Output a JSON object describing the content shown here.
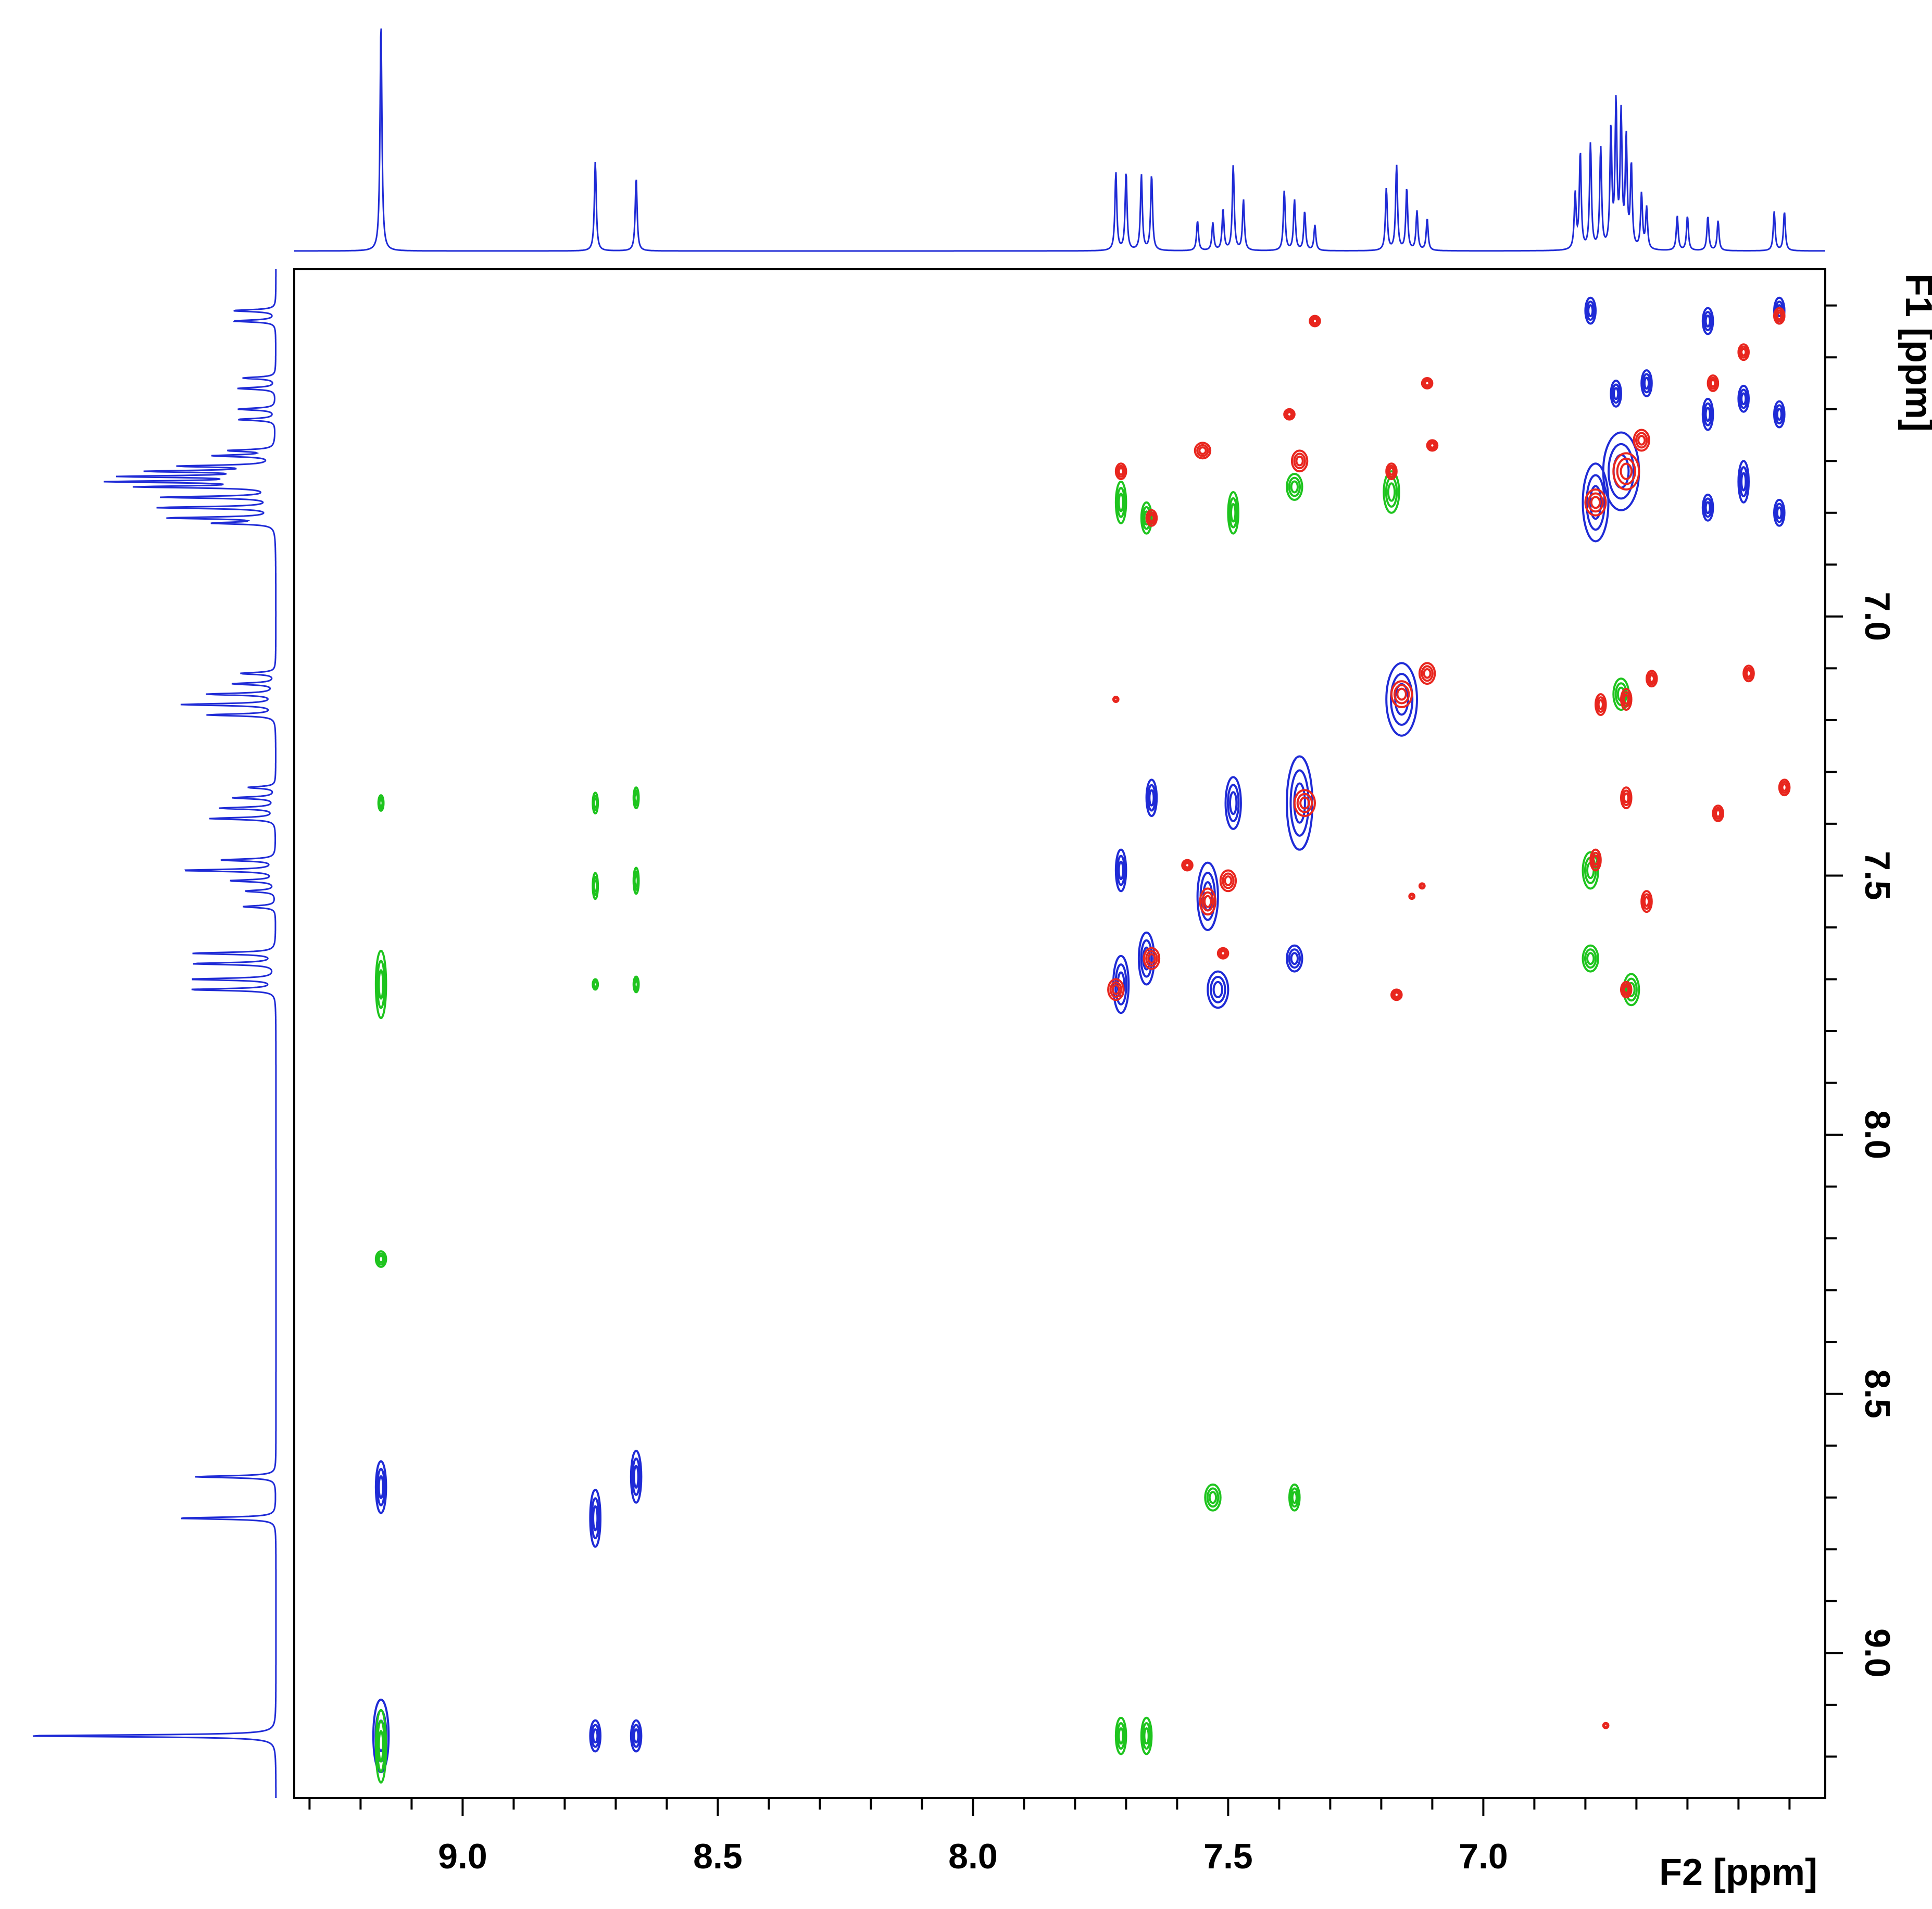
{
  "chart_data": {
    "type": "heatmap",
    "description_kind": "2D NMR correlation spectrum (overlaid contour plots) with 1D projections",
    "x_axis": {
      "label": "F2 [ppm]",
      "range": [
        9.33,
        6.33
      ],
      "ticks": [
        9.0,
        8.5,
        8.0,
        7.5,
        7.0
      ],
      "tick_labels": [
        "9.0",
        "8.5",
        "8.0",
        "7.5",
        "7.0"
      ],
      "minor_step": 0.1
    },
    "y_axis": {
      "label": "F1 [ppm]",
      "range": [
        6.33,
        9.28
      ],
      "ticks": [
        7.0,
        7.5,
        8.0,
        8.5,
        9.0
      ],
      "tick_labels": [
        "7.0",
        "7.5",
        "8.0",
        "8.5",
        "9.0"
      ],
      "minor_step": 0.1
    },
    "colors": {
      "series_1": "#1f2bd6",
      "series_2": "#1ec41e",
      "series_3": "#e8261e",
      "projection": "#1f2bd6"
    },
    "projection_peaks": [
      {
        "ppm": 9.16,
        "height": 1.0
      },
      {
        "ppm": 8.74,
        "height": 0.39
      },
      {
        "ppm": 8.66,
        "height": 0.32
      },
      {
        "ppm": 7.72,
        "height": 0.34
      },
      {
        "ppm": 7.7,
        "height": 0.34
      },
      {
        "ppm": 7.67,
        "height": 0.33
      },
      {
        "ppm": 7.65,
        "height": 0.33
      },
      {
        "ppm": 7.56,
        "height": 0.13
      },
      {
        "ppm": 7.53,
        "height": 0.12
      },
      {
        "ppm": 7.51,
        "height": 0.18
      },
      {
        "ppm": 7.49,
        "height": 0.37
      },
      {
        "ppm": 7.47,
        "height": 0.22
      },
      {
        "ppm": 7.39,
        "height": 0.26
      },
      {
        "ppm": 7.37,
        "height": 0.22
      },
      {
        "ppm": 7.35,
        "height": 0.17
      },
      {
        "ppm": 7.33,
        "height": 0.11
      },
      {
        "ppm": 7.19,
        "height": 0.27
      },
      {
        "ppm": 7.17,
        "height": 0.37
      },
      {
        "ppm": 7.15,
        "height": 0.27
      },
      {
        "ppm": 7.13,
        "height": 0.17
      },
      {
        "ppm": 7.11,
        "height": 0.14
      },
      {
        "ppm": 6.82,
        "height": 0.24
      },
      {
        "ppm": 6.81,
        "height": 0.42
      },
      {
        "ppm": 6.79,
        "height": 0.46
      },
      {
        "ppm": 6.77,
        "height": 0.44
      },
      {
        "ppm": 6.75,
        "height": 0.52
      },
      {
        "ppm": 6.74,
        "height": 0.62
      },
      {
        "ppm": 6.73,
        "height": 0.57
      },
      {
        "ppm": 6.72,
        "height": 0.47
      },
      {
        "ppm": 6.71,
        "height": 0.36
      },
      {
        "ppm": 6.69,
        "height": 0.24
      },
      {
        "ppm": 6.68,
        "height": 0.18
      },
      {
        "ppm": 6.62,
        "height": 0.15
      },
      {
        "ppm": 6.6,
        "height": 0.15
      },
      {
        "ppm": 6.56,
        "height": 0.15
      },
      {
        "ppm": 6.54,
        "height": 0.13
      },
      {
        "ppm": 6.43,
        "height": 0.17
      },
      {
        "ppm": 6.41,
        "height": 0.17
      }
    ],
    "series": [
      {
        "name": "blue",
        "color": "#1f2bd6",
        "peaks": [
          {
            "f2": 9.16,
            "f1": 9.16,
            "w": 0.03,
            "h": 0.14
          },
          {
            "f2": 9.16,
            "f1": 8.68,
            "w": 0.02,
            "h": 0.1
          },
          {
            "f2": 8.74,
            "f1": 9.16,
            "w": 0.02,
            "h": 0.06
          },
          {
            "f2": 8.74,
            "f1": 8.74,
            "w": 0.02,
            "h": 0.11
          },
          {
            "f2": 8.66,
            "f1": 9.16,
            "w": 0.02,
            "h": 0.06
          },
          {
            "f2": 8.66,
            "f1": 8.66,
            "w": 0.02,
            "h": 0.1
          },
          {
            "f2": 7.71,
            "f1": 7.71,
            "w": 0.03,
            "h": 0.11
          },
          {
            "f2": 7.71,
            "f1": 7.49,
            "w": 0.02,
            "h": 0.08
          },
          {
            "f2": 7.66,
            "f1": 7.66,
            "w": 0.03,
            "h": 0.1
          },
          {
            "f2": 7.65,
            "f1": 7.35,
            "w": 0.02,
            "h": 0.07
          },
          {
            "f2": 7.54,
            "f1": 7.54,
            "w": 0.04,
            "h": 0.13
          },
          {
            "f2": 7.52,
            "f1": 7.72,
            "w": 0.04,
            "h": 0.07
          },
          {
            "f2": 7.49,
            "f1": 7.36,
            "w": 0.03,
            "h": 0.1
          },
          {
            "f2": 7.36,
            "f1": 7.36,
            "w": 0.05,
            "h": 0.18
          },
          {
            "f2": 7.37,
            "f1": 7.66,
            "w": 0.03,
            "h": 0.05
          },
          {
            "f2": 7.16,
            "f1": 7.16,
            "w": 0.06,
            "h": 0.14
          },
          {
            "f2": 6.78,
            "f1": 6.78,
            "w": 0.05,
            "h": 0.15
          },
          {
            "f2": 6.73,
            "f1": 6.72,
            "w": 0.07,
            "h": 0.15
          },
          {
            "f2": 6.79,
            "f1": 6.41,
            "w": 0.02,
            "h": 0.05
          },
          {
            "f2": 6.74,
            "f1": 6.57,
            "w": 0.02,
            "h": 0.05
          },
          {
            "f2": 6.68,
            "f1": 6.55,
            "w": 0.02,
            "h": 0.05
          },
          {
            "f2": 6.56,
            "f1": 6.43,
            "w": 0.02,
            "h": 0.05
          },
          {
            "f2": 6.56,
            "f1": 6.61,
            "w": 0.02,
            "h": 0.06
          },
          {
            "f2": 6.56,
            "f1": 6.79,
            "w": 0.02,
            "h": 0.05
          },
          {
            "f2": 6.49,
            "f1": 6.58,
            "w": 0.02,
            "h": 0.05
          },
          {
            "f2": 6.49,
            "f1": 6.74,
            "w": 0.02,
            "h": 0.08
          },
          {
            "f2": 6.42,
            "f1": 6.41,
            "w": 0.02,
            "h": 0.05
          },
          {
            "f2": 6.42,
            "f1": 6.61,
            "w": 0.02,
            "h": 0.05
          },
          {
            "f2": 6.42,
            "f1": 6.8,
            "w": 0.02,
            "h": 0.05
          }
        ]
      },
      {
        "name": "green",
        "color": "#1ec41e",
        "peaks": [
          {
            "f2": 9.16,
            "f1": 9.18,
            "w": 0.02,
            "h": 0.14
          },
          {
            "f2": 9.16,
            "f1": 8.24,
            "w": 0.02,
            "h": 0.03
          },
          {
            "f2": 9.16,
            "f1": 7.71,
            "w": 0.02,
            "h": 0.13
          },
          {
            "f2": 9.16,
            "f1": 7.36,
            "w": 0.01,
            "h": 0.03
          },
          {
            "f2": 8.74,
            "f1": 7.36,
            "w": 0.01,
            "h": 0.04
          },
          {
            "f2": 8.74,
            "f1": 7.52,
            "w": 0.01,
            "h": 0.05
          },
          {
            "f2": 8.74,
            "f1": 7.71,
            "w": 0.01,
            "h": 0.02
          },
          {
            "f2": 8.66,
            "f1": 7.35,
            "w": 0.01,
            "h": 0.04
          },
          {
            "f2": 8.66,
            "f1": 7.51,
            "w": 0.01,
            "h": 0.05
          },
          {
            "f2": 8.66,
            "f1": 7.71,
            "w": 0.01,
            "h": 0.03
          },
          {
            "f2": 7.71,
            "f1": 9.16,
            "w": 0.02,
            "h": 0.07
          },
          {
            "f2": 7.66,
            "f1": 9.16,
            "w": 0.02,
            "h": 0.07
          },
          {
            "f2": 7.71,
            "f1": 6.78,
            "w": 0.02,
            "h": 0.08
          },
          {
            "f2": 7.66,
            "f1": 6.81,
            "w": 0.02,
            "h": 0.06
          },
          {
            "f2": 7.49,
            "f1": 6.8,
            "w": 0.02,
            "h": 0.08
          },
          {
            "f2": 7.37,
            "f1": 6.75,
            "w": 0.03,
            "h": 0.05
          },
          {
            "f2": 7.18,
            "f1": 6.76,
            "w": 0.03,
            "h": 0.08
          },
          {
            "f2": 7.53,
            "f1": 8.7,
            "w": 0.03,
            "h": 0.05
          },
          {
            "f2": 7.37,
            "f1": 8.7,
            "w": 0.02,
            "h": 0.05
          },
          {
            "f2": 6.79,
            "f1": 7.49,
            "w": 0.03,
            "h": 0.07
          },
          {
            "f2": 6.79,
            "f1": 7.66,
            "w": 0.03,
            "h": 0.05
          },
          {
            "f2": 6.71,
            "f1": 7.72,
            "w": 0.03,
            "h": 0.06
          },
          {
            "f2": 6.73,
            "f1": 7.15,
            "w": 0.03,
            "h": 0.06
          }
        ]
      },
      {
        "name": "red",
        "color": "#e8261e",
        "peaks": [
          {
            "f2": 7.72,
            "f1": 7.72,
            "w": 0.03,
            "h": 0.04
          },
          {
            "f2": 7.65,
            "f1": 7.66,
            "w": 0.03,
            "h": 0.04
          },
          {
            "f2": 7.54,
            "f1": 7.55,
            "w": 0.03,
            "h": 0.05
          },
          {
            "f2": 7.5,
            "f1": 7.51,
            "w": 0.03,
            "h": 0.04
          },
          {
            "f2": 7.35,
            "f1": 7.36,
            "w": 0.04,
            "h": 0.05
          },
          {
            "f2": 7.16,
            "f1": 7.15,
            "w": 0.04,
            "h": 0.05
          },
          {
            "f2": 7.11,
            "f1": 7.11,
            "w": 0.03,
            "h": 0.04
          },
          {
            "f2": 7.33,
            "f1": 6.43,
            "w": 0.02,
            "h": 0.02
          },
          {
            "f2": 7.11,
            "f1": 6.55,
            "w": 0.02,
            "h": 0.02
          },
          {
            "f2": 7.38,
            "f1": 6.61,
            "w": 0.02,
            "h": 0.02
          },
          {
            "f2": 7.55,
            "f1": 6.68,
            "w": 0.03,
            "h": 0.03
          },
          {
            "f2": 7.36,
            "f1": 6.7,
            "w": 0.03,
            "h": 0.04
          },
          {
            "f2": 7.1,
            "f1": 6.67,
            "w": 0.02,
            "h": 0.02
          },
          {
            "f2": 7.71,
            "f1": 6.72,
            "w": 0.02,
            "h": 0.03
          },
          {
            "f2": 7.18,
            "f1": 6.72,
            "w": 0.02,
            "h": 0.03
          },
          {
            "f2": 7.65,
            "f1": 6.81,
            "w": 0.02,
            "h": 0.03
          },
          {
            "f2": 7.72,
            "f1": 7.16,
            "w": 0.01,
            "h": 0.01
          },
          {
            "f2": 7.58,
            "f1": 7.48,
            "w": 0.02,
            "h": 0.02
          },
          {
            "f2": 7.51,
            "f1": 7.65,
            "w": 0.02,
            "h": 0.02
          },
          {
            "f2": 7.14,
            "f1": 7.54,
            "w": 0.01,
            "h": 0.01
          },
          {
            "f2": 7.12,
            "f1": 7.52,
            "w": 0.01,
            "h": 0.01
          },
          {
            "f2": 7.17,
            "f1": 7.73,
            "w": 0.02,
            "h": 0.02
          },
          {
            "f2": 6.78,
            "f1": 6.78,
            "w": 0.04,
            "h": 0.05
          },
          {
            "f2": 6.72,
            "f1": 6.72,
            "w": 0.05,
            "h": 0.07
          },
          {
            "f2": 6.69,
            "f1": 6.66,
            "w": 0.03,
            "h": 0.04
          },
          {
            "f2": 6.55,
            "f1": 6.55,
            "w": 0.02,
            "h": 0.03
          },
          {
            "f2": 6.49,
            "f1": 6.49,
            "w": 0.02,
            "h": 0.03
          },
          {
            "f2": 6.42,
            "f1": 6.42,
            "w": 0.02,
            "h": 0.03
          },
          {
            "f2": 6.77,
            "f1": 7.17,
            "w": 0.02,
            "h": 0.04
          },
          {
            "f2": 6.72,
            "f1": 7.16,
            "w": 0.02,
            "h": 0.04
          },
          {
            "f2": 6.67,
            "f1": 7.12,
            "w": 0.02,
            "h": 0.03
          },
          {
            "f2": 6.72,
            "f1": 7.35,
            "w": 0.02,
            "h": 0.04
          },
          {
            "f2": 6.48,
            "f1": 7.11,
            "w": 0.02,
            "h": 0.03
          },
          {
            "f2": 6.78,
            "f1": 7.47,
            "w": 0.02,
            "h": 0.04
          },
          {
            "f2": 6.68,
            "f1": 7.55,
            "w": 0.02,
            "h": 0.04
          },
          {
            "f2": 6.72,
            "f1": 7.72,
            "w": 0.02,
            "h": 0.03
          },
          {
            "f2": 6.54,
            "f1": 7.38,
            "w": 0.02,
            "h": 0.03
          },
          {
            "f2": 6.41,
            "f1": 7.33,
            "w": 0.02,
            "h": 0.03
          },
          {
            "f2": 6.76,
            "f1": 9.14,
            "w": 0.01,
            "h": 0.01
          }
        ]
      }
    ]
  }
}
